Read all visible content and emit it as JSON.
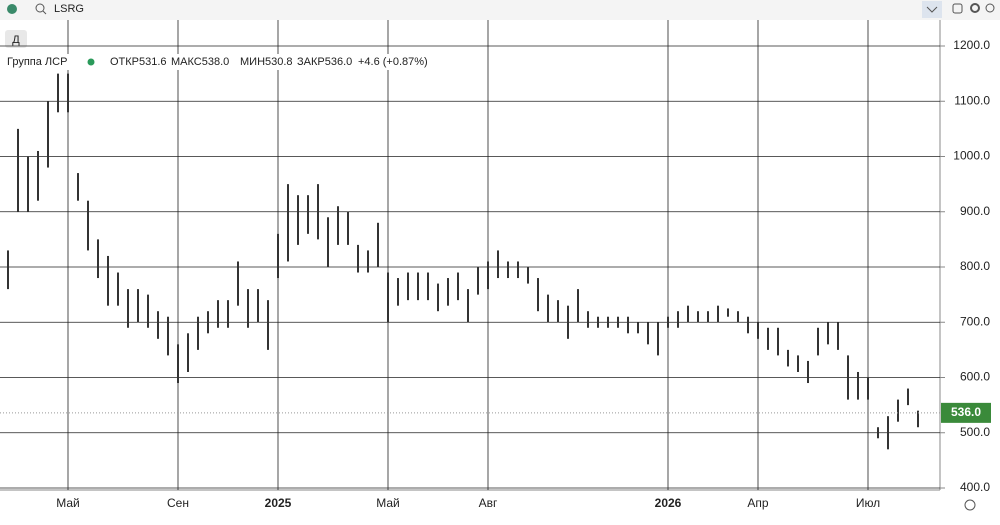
{
  "chart_data": {
    "type": "ohlc",
    "symbol": "LSRG",
    "interval": "Д",
    "title": "Группа ЛСР",
    "legend": {
      "open": "ОТКР531.6",
      "high": "МАКС538.0",
      "low": "МИН530.8",
      "close": "ЗАКР536.0",
      "change": "+4.6 (+0.87%)"
    },
    "categories": [
      null,
      null,
      null,
      null,
      null,
      null,
      "Май",
      null,
      null,
      null,
      null,
      null,
      null,
      null,
      null,
      null,
      null,
      "Сен",
      null,
      null,
      null,
      null,
      null,
      null,
      null,
      null,
      null,
      "2025",
      null,
      null,
      null,
      null,
      null,
      null,
      null,
      null,
      null,
      null,
      "Май",
      null,
      null,
      null,
      null,
      null,
      null,
      null,
      null,
      null,
      "Авг",
      null,
      null,
      null,
      null,
      null,
      null,
      null,
      null,
      null,
      null,
      null,
      null,
      null,
      null,
      null,
      null,
      null,
      "2026",
      null,
      null,
      null,
      null,
      null,
      null,
      null,
      null,
      "Апр",
      null,
      null,
      null,
      null,
      null,
      null,
      null,
      null,
      null,
      null,
      "Июл",
      null,
      null,
      null,
      null,
      null
    ],
    "high": [
      830,
      1050,
      1000,
      1010,
      1100,
      1150,
      1150,
      970,
      920,
      850,
      820,
      790,
      760,
      760,
      750,
      720,
      710,
      660,
      680,
      710,
      720,
      740,
      740,
      810,
      760,
      760,
      740,
      860,
      950,
      930,
      930,
      950,
      890,
      910,
      900,
      840,
      830,
      880,
      790,
      780,
      790,
      790,
      790,
      770,
      780,
      790,
      760,
      800,
      810,
      830,
      810,
      810,
      800,
      780,
      750,
      740,
      730,
      760,
      720,
      710,
      710,
      710,
      710,
      700,
      700,
      700,
      710,
      720,
      730,
      720,
      720,
      730,
      725,
      720,
      710,
      700,
      690,
      690,
      650,
      640,
      630,
      690,
      700,
      700,
      640,
      610,
      600,
      510,
      530,
      560,
      580,
      540
    ],
    "low": [
      760,
      900,
      900,
      920,
      980,
      1080,
      1080,
      920,
      830,
      780,
      730,
      730,
      690,
      700,
      690,
      670,
      640,
      590,
      610,
      650,
      680,
      690,
      690,
      730,
      690,
      700,
      650,
      780,
      810,
      840,
      860,
      850,
      800,
      840,
      840,
      790,
      790,
      800,
      700,
      730,
      740,
      740,
      740,
      720,
      730,
      740,
      700,
      750,
      760,
      780,
      780,
      780,
      770,
      720,
      700,
      700,
      670,
      700,
      690,
      690,
      690,
      690,
      680,
      680,
      660,
      640,
      690,
      690,
      700,
      700,
      700,
      700,
      710,
      700,
      680,
      670,
      650,
      640,
      620,
      610,
      590,
      640,
      660,
      650,
      560,
      560,
      560,
      490,
      470,
      520,
      550,
      510
    ],
    "color": "#333333",
    "last_price": {
      "value": 536,
      "label": "536.0"
    },
    "ylim": [
      400,
      1200
    ],
    "yticks": [
      {
        "value": 400,
        "label": "400.0"
      },
      {
        "value": 500,
        "label": "500.0"
      },
      {
        "value": 600,
        "label": "600.0"
      },
      {
        "value": 700,
        "label": "700.0"
      },
      {
        "value": 800,
        "label": "800.0"
      },
      {
        "value": 900,
        "label": "900.0"
      },
      {
        "value": 1000,
        "label": "1000.0"
      },
      {
        "value": 1100,
        "label": "1100.0"
      },
      {
        "value": 1200,
        "label": "1200.0"
      }
    ],
    "grid": true
  }
}
